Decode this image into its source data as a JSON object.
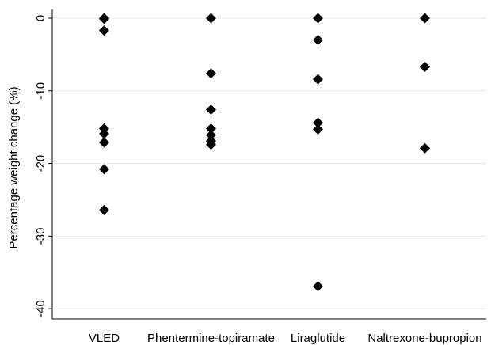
{
  "chart_data": {
    "type": "strip",
    "y_label": "Percentage weight change (%)",
    "categories": [
      "VLED",
      "Phentermine-topiramate",
      "Liraglutide",
      "Naltrexone-bupropion"
    ],
    "values": [
      [
        0,
        -0.1,
        -1.7,
        -15.2,
        -15.9,
        -17.1,
        -20.8,
        -26.4
      ],
      [
        0,
        -7.6,
        -12.6,
        -15.2,
        -16.1,
        -16.9,
        -17.4
      ],
      [
        0,
        -3.0,
        -8.4,
        -14.4,
        -15.3,
        -36.9
      ],
      [
        0,
        -6.7,
        -17.9
      ]
    ],
    "color": "#000000",
    "ylim": [
      -41.4,
      1.2
    ],
    "yticks": [
      0,
      -10,
      -20,
      -30,
      -40
    ],
    "grid": true
  }
}
